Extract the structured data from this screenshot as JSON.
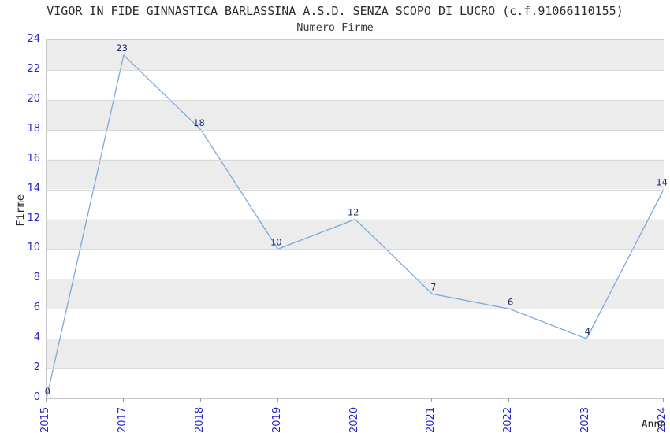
{
  "chart_data": {
    "type": "line",
    "title": "VIGOR IN FIDE GINNASTICA BARLASSINA A.S.D. SENZA SCOPO DI LUCRO (c.f.91066110155)",
    "subtitle": "Numero Firme",
    "xlabel": "Anno",
    "ylabel": "Firme",
    "categories": [
      "2015",
      "2017",
      "2018",
      "2019",
      "2020",
      "2021",
      "2022",
      "2023",
      "2024"
    ],
    "values": [
      0,
      23,
      18,
      10,
      12,
      7,
      6,
      4,
      14
    ],
    "ylim": [
      0,
      24
    ],
    "yticks": [
      0,
      2,
      4,
      6,
      8,
      10,
      12,
      14,
      16,
      18,
      20,
      22,
      24
    ],
    "grid": "alternating horizontal bands, gray band at top interval 22-24",
    "legend": "none",
    "colors": {
      "line": "#7aa9dd",
      "tick_label": "#2326c9",
      "point_label": "#26266e",
      "band_gray": "#ececec",
      "band_white": "#ffffff",
      "gridline": "#d9d9d9",
      "plot_border": "#c9c9c9",
      "title_text": "#2b2b2b"
    }
  }
}
